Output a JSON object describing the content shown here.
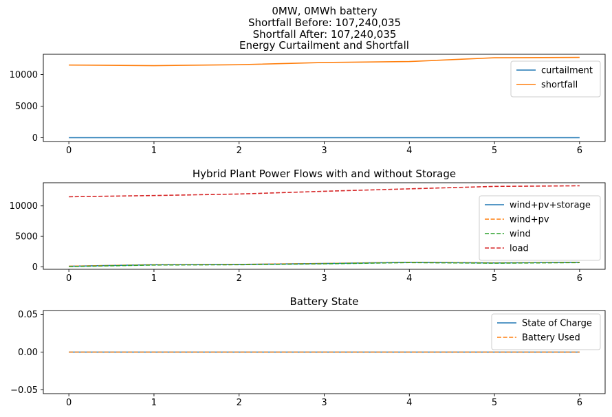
{
  "figure": {
    "suptitle_lines": [
      "0MW, 0MWh battery",
      "Shortfall Before: 107,240,035",
      "Shortfall After: 107,240,035"
    ]
  },
  "chart_data": [
    {
      "type": "line",
      "title": "Energy Curtailment and Shortfall",
      "x": [
        0,
        1,
        2,
        3,
        4,
        5,
        6
      ],
      "xlim": [
        -0.3,
        6.3
      ],
      "ylim": [
        -600,
        13200
      ],
      "xticks": [
        0,
        1,
        2,
        3,
        4,
        5,
        6
      ],
      "yticks": [
        0,
        5000,
        10000
      ],
      "legend_position": "top-right",
      "series": [
        {
          "name": "curtailment",
          "color": "#1f77b4",
          "dash": "solid",
          "values": [
            0,
            0,
            0,
            0,
            0,
            0,
            0
          ]
        },
        {
          "name": "shortfall",
          "color": "#ff7f0e",
          "dash": "solid",
          "values": [
            11500,
            11400,
            11550,
            11900,
            12050,
            12650,
            12700
          ]
        }
      ]
    },
    {
      "type": "line",
      "title": "Hybrid Plant Power Flows with and without Storage",
      "x": [
        0,
        1,
        2,
        3,
        4,
        5,
        6
      ],
      "xlim": [
        -0.3,
        6.3
      ],
      "ylim": [
        -400,
        13800
      ],
      "xticks": [
        0,
        1,
        2,
        3,
        4,
        5,
        6
      ],
      "yticks": [
        0,
        5000,
        10000
      ],
      "legend_position": "center-right",
      "series": [
        {
          "name": "wind+pv+storage",
          "color": "#1f77b4",
          "dash": "solid",
          "values": [
            100,
            350,
            400,
            550,
            750,
            650,
            750
          ]
        },
        {
          "name": "wind+pv",
          "color": "#ff7f0e",
          "dash": "dashed",
          "values": [
            100,
            350,
            400,
            550,
            750,
            650,
            750
          ]
        },
        {
          "name": "wind",
          "color": "#2ca02c",
          "dash": "dashed",
          "values": [
            50,
            300,
            350,
            500,
            700,
            600,
            700
          ]
        },
        {
          "name": "load",
          "color": "#d62728",
          "dash": "dashed",
          "values": [
            11500,
            11700,
            11950,
            12400,
            12800,
            13200,
            13300
          ]
        }
      ]
    },
    {
      "type": "line",
      "title": "Battery State",
      "x": [
        0,
        1,
        2,
        3,
        4,
        5,
        6
      ],
      "xlim": [
        -0.3,
        6.3
      ],
      "ylim": [
        -0.055,
        0.055
      ],
      "xticks": [
        0,
        1,
        2,
        3,
        4,
        5,
        6
      ],
      "yticks": [
        -0.05,
        0.0,
        0.05
      ],
      "ytick_labels": [
        "−0.05",
        "0.00",
        "0.05"
      ],
      "legend_position": "top-right",
      "series": [
        {
          "name": "State of Charge",
          "color": "#1f77b4",
          "dash": "solid",
          "values": [
            0,
            0,
            0,
            0,
            0,
            0,
            0
          ]
        },
        {
          "name": "Battery Used",
          "color": "#ff7f0e",
          "dash": "dashed",
          "values": [
            0,
            0,
            0,
            0,
            0,
            0,
            0
          ]
        }
      ]
    }
  ]
}
